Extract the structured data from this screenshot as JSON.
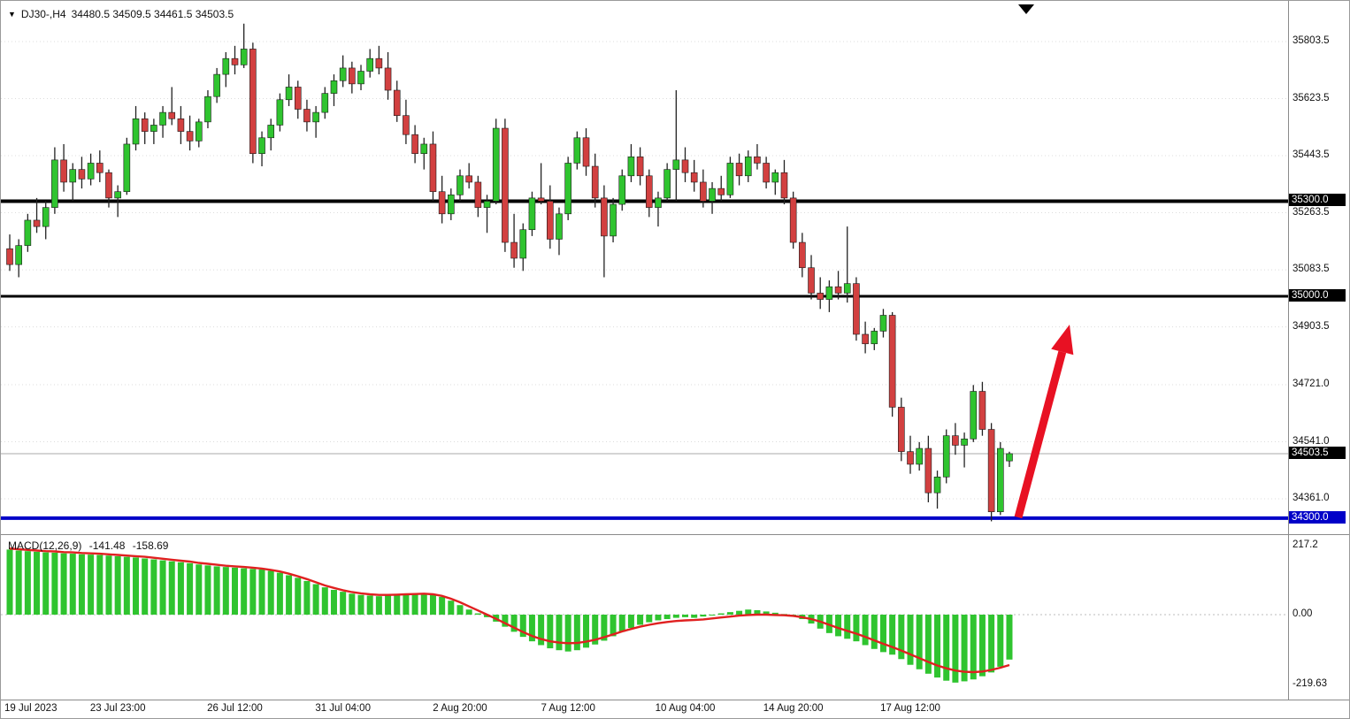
{
  "header": {
    "symbol": "DJ30-,H4",
    "ohlc_text": "34480.5 34509.5 34461.5 34503.5"
  },
  "chart_data": {
    "type": "candlestick",
    "symbol": "DJ30-",
    "timeframe": "H4",
    "ohlc_current": {
      "open": 34480.5,
      "high": 34509.5,
      "low": 34461.5,
      "close": 34503.5
    },
    "y_axis": {
      "ticks": [
        "35803.5",
        "35623.5",
        "35443.5",
        "35263.5",
        "35083.5",
        "34903.5",
        "34721.0",
        "34541.0",
        "34361.0"
      ]
    },
    "x_axis": {
      "labels": [
        {
          "text": "19 Jul 2023",
          "candle": 0
        },
        {
          "text": "23 Jul 23:00",
          "candle": 12
        },
        {
          "text": "26 Jul 12:00",
          "candle": 25
        },
        {
          "text": "31 Jul 04:00",
          "candle": 37
        },
        {
          "text": "2 Aug 20:00",
          "candle": 50
        },
        {
          "text": "7 Aug 12:00",
          "candle": 62
        },
        {
          "text": "10 Aug 04:00",
          "candle": 75
        },
        {
          "text": "14 Aug 20:00",
          "candle": 87
        },
        {
          "text": "17 Aug 12:00",
          "candle": 100
        }
      ]
    },
    "price_lines": [
      {
        "label": "35300.0",
        "value": 35300.0,
        "color": "#000000",
        "width": 4,
        "tag_bg": "#000000"
      },
      {
        "label": "35000.0",
        "value": 35000.0,
        "color": "#000000",
        "width": 3,
        "tag_bg": "#000000"
      },
      {
        "label": "34300.0",
        "value": 34300.0,
        "color": "#0000C8",
        "width": 4,
        "tag_bg": "#0000C8"
      }
    ],
    "current_price": {
      "label": "34503.5",
      "value": 34503.5,
      "tag_bg": "#000000",
      "line_color": "#aaaaaa"
    },
    "candles": [
      [
        35150,
        35195,
        35080,
        35100
      ],
      [
        35100,
        35180,
        35060,
        35160
      ],
      [
        35160,
        35260,
        35140,
        35240
      ],
      [
        35240,
        35310,
        35200,
        35220
      ],
      [
        35220,
        35300,
        35180,
        35280
      ],
      [
        35280,
        35470,
        35260,
        35430
      ],
      [
        35430,
        35480,
        35330,
        35360
      ],
      [
        35360,
        35420,
        35300,
        35400
      ],
      [
        35400,
        35440,
        35340,
        35370
      ],
      [
        35370,
        35450,
        35350,
        35420
      ],
      [
        35420,
        35460,
        35360,
        35390
      ],
      [
        35390,
        35400,
        35280,
        35310
      ],
      [
        35310,
        35350,
        35250,
        35330
      ],
      [
        35330,
        35500,
        35320,
        35480
      ],
      [
        35480,
        35600,
        35460,
        35560
      ],
      [
        35560,
        35580,
        35480,
        35520
      ],
      [
        35520,
        35560,
        35480,
        35540
      ],
      [
        35540,
        35600,
        35500,
        35580
      ],
      [
        35580,
        35660,
        35540,
        35560
      ],
      [
        35560,
        35600,
        35480,
        35520
      ],
      [
        35520,
        35570,
        35460,
        35490
      ],
      [
        35490,
        35560,
        35470,
        35550
      ],
      [
        35550,
        35650,
        35530,
        35630
      ],
      [
        35630,
        35720,
        35610,
        35700
      ],
      [
        35700,
        35770,
        35660,
        35750
      ],
      [
        35750,
        35790,
        35700,
        35730
      ],
      [
        35730,
        35860,
        35720,
        35780
      ],
      [
        35780,
        35800,
        35420,
        35450
      ],
      [
        35450,
        35520,
        35410,
        35500
      ],
      [
        35500,
        35560,
        35460,
        35540
      ],
      [
        35540,
        35640,
        35520,
        35620
      ],
      [
        35620,
        35700,
        35600,
        35660
      ],
      [
        35660,
        35680,
        35560,
        35590
      ],
      [
        35590,
        35620,
        35520,
        35550
      ],
      [
        35550,
        35600,
        35500,
        35580
      ],
      [
        35580,
        35660,
        35560,
        35640
      ],
      [
        35640,
        35700,
        35600,
        35680
      ],
      [
        35680,
        35760,
        35660,
        35720
      ],
      [
        35720,
        35740,
        35640,
        35670
      ],
      [
        35670,
        35730,
        35650,
        35710
      ],
      [
        35710,
        35780,
        35690,
        35750
      ],
      [
        35750,
        35790,
        35700,
        35720
      ],
      [
        35720,
        35770,
        35620,
        35650
      ],
      [
        35650,
        35680,
        35550,
        35570
      ],
      [
        35570,
        35620,
        35480,
        35510
      ],
      [
        35510,
        35540,
        35420,
        35450
      ],
      [
        35450,
        35500,
        35400,
        35480
      ],
      [
        35480,
        35520,
        35300,
        35330
      ],
      [
        35330,
        35380,
        35230,
        35260
      ],
      [
        35260,
        35340,
        35240,
        35320
      ],
      [
        35320,
        35400,
        35300,
        35380
      ],
      [
        35380,
        35420,
        35340,
        35360
      ],
      [
        35360,
        35380,
        35250,
        35280
      ],
      [
        35280,
        35320,
        35200,
        35300
      ],
      [
        35300,
        35560,
        35290,
        35530
      ],
      [
        35530,
        35560,
        35140,
        35170
      ],
      [
        35170,
        35260,
        35090,
        35120
      ],
      [
        35120,
        35230,
        35080,
        35210
      ],
      [
        35210,
        35330,
        35190,
        35310
      ],
      [
        35310,
        35420,
        35290,
        35300
      ],
      [
        35300,
        35350,
        35150,
        35180
      ],
      [
        35180,
        35280,
        35130,
        35260
      ],
      [
        35260,
        35440,
        35240,
        35420
      ],
      [
        35420,
        35520,
        35400,
        35500
      ],
      [
        35500,
        35530,
        35380,
        35410
      ],
      [
        35410,
        35450,
        35280,
        35310
      ],
      [
        35310,
        35350,
        35060,
        35190
      ],
      [
        35190,
        35310,
        35170,
        35290
      ],
      [
        35290,
        35400,
        35270,
        35380
      ],
      [
        35380,
        35480,
        35360,
        35440
      ],
      [
        35440,
        35470,
        35350,
        35380
      ],
      [
        35380,
        35400,
        35250,
        35280
      ],
      [
        35280,
        35330,
        35220,
        35310
      ],
      [
        35310,
        35420,
        35300,
        35400
      ],
      [
        35400,
        35650,
        35300,
        35430
      ],
      [
        35430,
        35470,
        35360,
        35390
      ],
      [
        35390,
        35430,
        35330,
        35360
      ],
      [
        35360,
        35400,
        35280,
        35300
      ],
      [
        35300,
        35360,
        35260,
        35340
      ],
      [
        35340,
        35380,
        35300,
        35320
      ],
      [
        35320,
        35440,
        35310,
        35420
      ],
      [
        35420,
        35450,
        35350,
        35380
      ],
      [
        35380,
        35460,
        35360,
        35440
      ],
      [
        35440,
        35480,
        35400,
        35420
      ],
      [
        35420,
        35440,
        35340,
        35360
      ],
      [
        35360,
        35400,
        35320,
        35390
      ],
      [
        35390,
        35430,
        35290,
        35310
      ],
      [
        35310,
        35330,
        35150,
        35170
      ],
      [
        35170,
        35200,
        35060,
        35090
      ],
      [
        35090,
        35130,
        34990,
        35010
      ],
      [
        35010,
        35060,
        34960,
        34990
      ],
      [
        34990,
        35050,
        34950,
        35030
      ],
      [
        35030,
        35080,
        34990,
        35010
      ],
      [
        35010,
        35220,
        34980,
        35040
      ],
      [
        35040,
        35060,
        34860,
        34880
      ],
      [
        34880,
        34920,
        34820,
        34850
      ],
      [
        34850,
        34900,
        34830,
        34890
      ],
      [
        34890,
        34960,
        34870,
        34940
      ],
      [
        34940,
        34950,
        34620,
        34650
      ],
      [
        34650,
        34680,
        34480,
        34510
      ],
      [
        34510,
        34560,
        34440,
        34470
      ],
      [
        34470,
        34540,
        34450,
        34520
      ],
      [
        34520,
        34560,
        34350,
        34380
      ],
      [
        34380,
        34450,
        34330,
        34430
      ],
      [
        34430,
        34580,
        34410,
        34560
      ],
      [
        34560,
        34600,
        34500,
        34530
      ],
      [
        34530,
        34570,
        34460,
        34550
      ],
      [
        34550,
        34720,
        34540,
        34700
      ],
      [
        34700,
        34730,
        34560,
        34580
      ],
      [
        34580,
        34600,
        34290,
        34320
      ],
      [
        34320,
        34540,
        34310,
        34520
      ],
      [
        34480.5,
        34509.5,
        34461.5,
        34503.5
      ]
    ],
    "macd": {
      "label": "MACD(12,26,9)",
      "main_value": "-141.48",
      "signal_value": "-158.69",
      "ticks": [
        "217.2",
        "0.00",
        "-219.63"
      ],
      "histogram": [
        205,
        202,
        200,
        198,
        196,
        195,
        193,
        192,
        190,
        189,
        188,
        186,
        184,
        182,
        180,
        177,
        174,
        171,
        168,
        165,
        162,
        158,
        155,
        152,
        150,
        148,
        146,
        144,
        142,
        138,
        132,
        124,
        116,
        106,
        96,
        86,
        78,
        72,
        66,
        62,
        60,
        58,
        60,
        62,
        64,
        66,
        68,
        64,
        56,
        44,
        30,
        16,
        4,
        -8,
        -22,
        -38,
        -54,
        -70,
        -84,
        -96,
        -106,
        -112,
        -116,
        -112,
        -104,
        -94,
        -82,
        -68,
        -54,
        -42,
        -32,
        -24,
        -18,
        -14,
        -10,
        -8,
        -10,
        -6,
        -2,
        4,
        8,
        12,
        16,
        14,
        10,
        6,
        2,
        -4,
        -14,
        -28,
        -44,
        -58,
        -68,
        -76,
        -84,
        -96,
        -108,
        -118,
        -126,
        -140,
        -158,
        -172,
        -186,
        -198,
        -208,
        -214,
        -210,
        -204,
        -194,
        -182,
        -164,
        -141.48
      ],
      "signal": [
        208,
        206,
        204,
        202,
        200,
        199,
        197,
        196,
        194,
        193,
        192,
        190,
        188,
        186,
        184,
        182,
        179,
        176,
        173,
        170,
        167,
        163,
        160,
        157,
        154,
        152,
        150,
        148,
        145,
        141,
        136,
        129,
        121,
        112,
        102,
        92,
        84,
        77,
        71,
        67,
        64,
        62,
        62,
        63,
        64,
        65,
        66,
        64,
        59,
        50,
        39,
        26,
        13,
        0,
        -13,
        -27,
        -41,
        -55,
        -67,
        -77,
        -84,
        -88,
        -90,
        -89,
        -85,
        -79,
        -71,
        -62,
        -53,
        -45,
        -38,
        -32,
        -27,
        -23,
        -20,
        -18,
        -17,
        -15,
        -12,
        -9,
        -6,
        -3,
        -1,
        0,
        0,
        -1,
        -2,
        -4,
        -8,
        -14,
        -22,
        -32,
        -42,
        -51,
        -60,
        -70,
        -81,
        -92,
        -102,
        -113,
        -125,
        -137,
        -149,
        -160,
        -169,
        -176,
        -180,
        -181,
        -179,
        -174,
        -167,
        -158.69
      ]
    },
    "arrow": {
      "from": [
        1150,
        584
      ],
      "to": [
        1208,
        366
      ],
      "color": "#E81123",
      "width": 9
    },
    "colors": {
      "bull": "#2FC42F",
      "bear": "#D24040",
      "wick": "#222222",
      "macd_hist": "#2FC42F",
      "macd_signal": "#E02020",
      "grid": "#dcdcdc"
    }
  }
}
